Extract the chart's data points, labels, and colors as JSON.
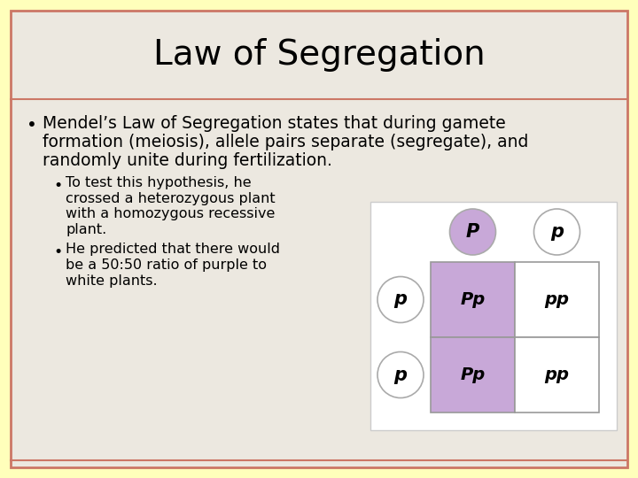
{
  "title": "Law of Segregation",
  "title_fontsize": 28,
  "bg_outer": "#ffffbb",
  "bg_slide": "#ece8e0",
  "border_color": "#cc7766",
  "bullet1_line1": "Mendel’s Law of Segregation states that during gamete",
  "bullet1_line2": "formation (meiosis), allele pairs separate (segregate), and",
  "bullet1_line3": "randomly unite during fertilization.",
  "sub_bullet1_line1": "To test this hypothesis, he",
  "sub_bullet1_line2": "crossed a heterozygous plant",
  "sub_bullet1_line3": "with a homozygous recessive",
  "sub_bullet1_line4": "plant.",
  "sub_bullet2_line1": "He predicted that there would",
  "sub_bullet2_line2": "be a 50:50 ratio of purple to",
  "sub_bullet2_line3": "white plants.",
  "main_fontsize": 13.5,
  "sub_fontsize": 11.5,
  "punnett_purple": "#c8a8d8",
  "punnett_white": "#ffffff",
  "punnett_grid_color": "#999999",
  "punnett_bg": "#ffffff",
  "circle_outline": "#aaaaaa",
  "circle_purple_fill": "#c8a8d8",
  "circle_white_fill": "#ffffff",
  "text_color": "#000000",
  "header_line_color": "#cc7766"
}
